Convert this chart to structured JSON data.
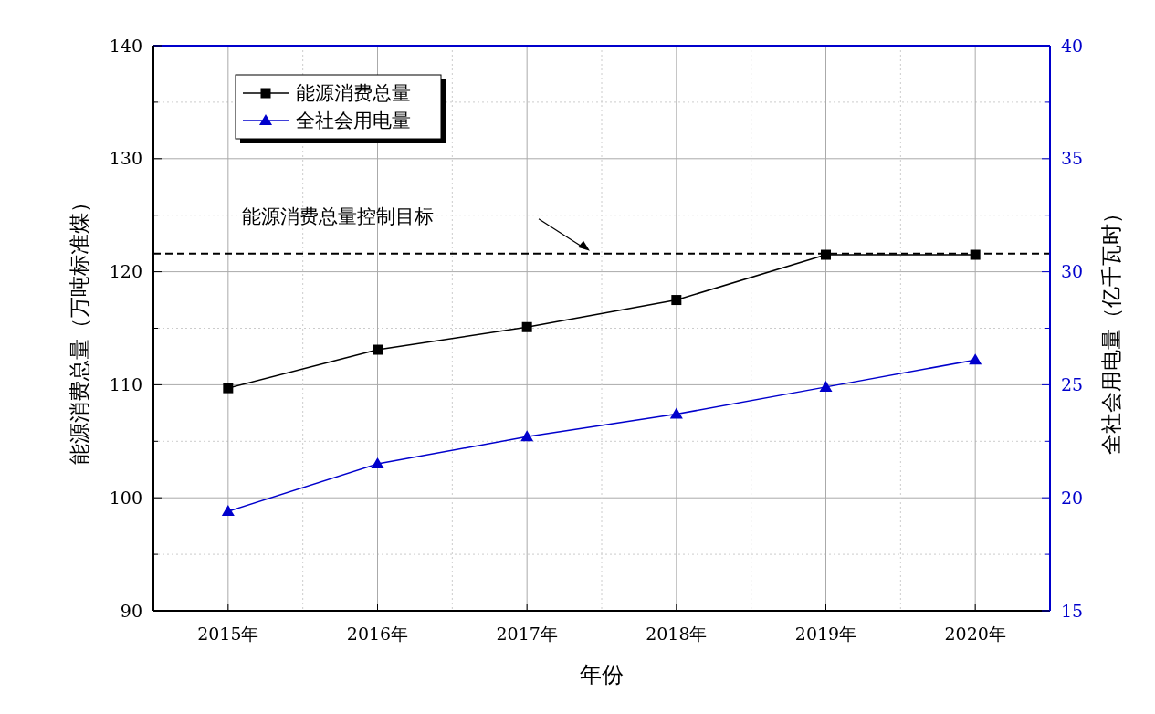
{
  "chart_data": {
    "type": "line",
    "xlabel": "年份",
    "ylabel": "能源消费总量（万吨标准煤）",
    "y2label": "全社会用电量（亿千瓦时）",
    "categories": [
      "2015年",
      "2016年",
      "2017年",
      "2018年",
      "2019年",
      "2020年"
    ],
    "series": [
      {
        "name": "能源消费总量",
        "color": "#000000",
        "marker": "square",
        "values": [
          109.7,
          113.1,
          115.1,
          117.5,
          121.5,
          121.5
        ]
      },
      {
        "name": "全社会用电量",
        "color": "#0000cc",
        "marker": "triangle",
        "axis": "y2",
        "values": [
          19.4,
          21.5,
          22.7,
          23.7,
          24.9,
          26.1
        ]
      }
    ],
    "ylim": [
      90,
      140
    ],
    "yticks": [
      90,
      {
        "value": 95,
        "label": null
      },
      100,
      {
        "value": 105,
        "label": null
      },
      110,
      {
        "value": 115,
        "label": null
      },
      120,
      {
        "value": 125,
        "label": null
      },
      130,
      {
        "value": 135,
        "label": null
      },
      140
    ],
    "y2lim": [
      15,
      40
    ],
    "y2ticks": [
      15,
      {
        "value": 17.5,
        "label": null
      },
      20,
      {
        "value": 22.5,
        "label": null
      },
      25,
      {
        "value": 27.5,
        "label": null
      },
      30,
      {
        "value": 32.5,
        "label": null
      },
      35,
      {
        "value": 37.5,
        "label": null
      },
      40
    ],
    "ref_lines": [
      {
        "axis": "y",
        "value": 121.6,
        "label": "能源消费总量控制目标",
        "color": "#000000",
        "line_style": "dashed"
      }
    ],
    "grid": true,
    "legend": "top left",
    "line_style": "solid"
  }
}
